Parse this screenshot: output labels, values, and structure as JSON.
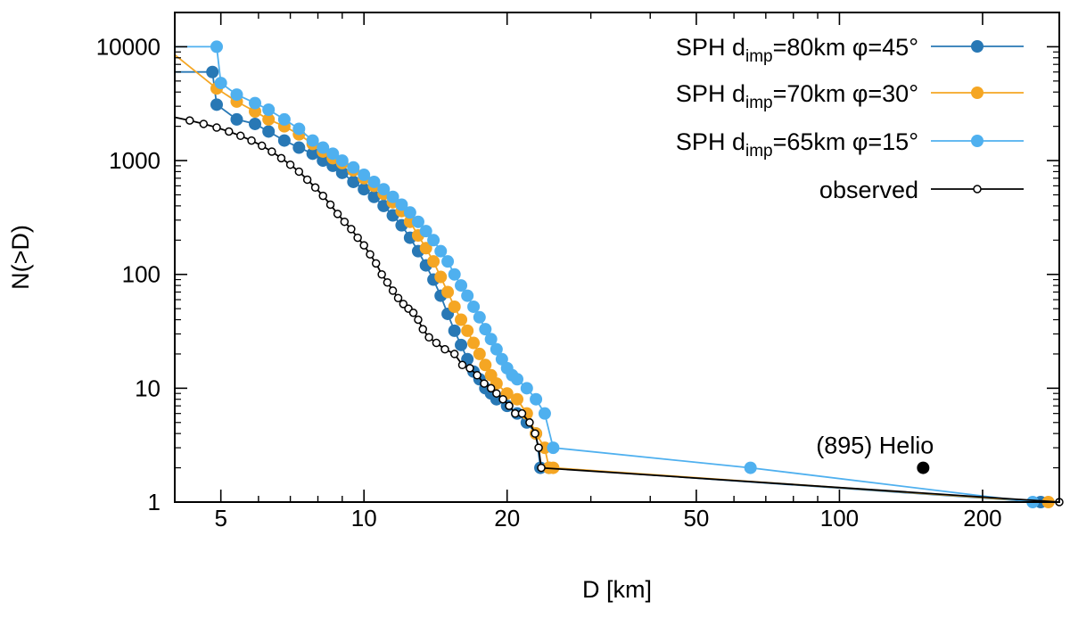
{
  "chart_data": {
    "type": "line",
    "xscale": "log",
    "yscale": "log",
    "xlabel": "D [km]",
    "ylabel": "N(>D)",
    "xlim": [
      4,
      290
    ],
    "ylim": [
      1,
      20000
    ],
    "xticks": [
      {
        "value": 5,
        "label": "5"
      },
      {
        "value": 10,
        "label": "10"
      },
      {
        "value": 20,
        "label": "20"
      },
      {
        "value": 50,
        "label": "50"
      },
      {
        "value": 100,
        "label": "100"
      },
      {
        "value": 200,
        "label": "200"
      }
    ],
    "yticks": [
      {
        "value": 1,
        "label": "1"
      },
      {
        "value": 10,
        "label": "10"
      },
      {
        "value": 100,
        "label": "100"
      },
      {
        "value": 1000,
        "label": "1000"
      },
      {
        "value": 10000,
        "label": "10000"
      }
    ],
    "legend_position": "top-right",
    "series": [
      {
        "name": "SPH d_imp=80km φ=45°",
        "legend_prefix": "SPH d",
        "legend_sub": "imp",
        "legend_suffix": "=80km φ=45°",
        "color": "#2878b5",
        "marker": "filled",
        "points": [
          [
            4,
            6000
          ],
          [
            4.8,
            6000
          ],
          [
            4.9,
            3100
          ],
          [
            5.4,
            2300
          ],
          [
            5.9,
            2100
          ],
          [
            6.3,
            1800
          ],
          [
            6.8,
            1500
          ],
          [
            7.3,
            1300
          ],
          [
            7.8,
            1150
          ],
          [
            8.2,
            1000
          ],
          [
            8.6,
            900
          ],
          [
            9.0,
            780
          ],
          [
            9.5,
            650
          ],
          [
            10.0,
            560
          ],
          [
            10.5,
            480
          ],
          [
            11.0,
            400
          ],
          [
            11.5,
            330
          ],
          [
            12.0,
            270
          ],
          [
            12.5,
            210
          ],
          [
            13.0,
            160
          ],
          [
            13.5,
            120
          ],
          [
            14.0,
            90
          ],
          [
            14.5,
            65
          ],
          [
            15.0,
            45
          ],
          [
            15.5,
            32
          ],
          [
            16.0,
            24
          ],
          [
            16.5,
            18
          ],
          [
            17.0,
            14
          ],
          [
            17.5,
            12
          ],
          [
            18.0,
            10
          ],
          [
            18.5,
            9
          ],
          [
            19.0,
            8
          ],
          [
            20.0,
            7
          ],
          [
            21.0,
            6
          ],
          [
            22.0,
            5
          ],
          [
            23.0,
            4
          ],
          [
            23.5,
            2
          ],
          [
            24.5,
            2
          ],
          [
            265,
            1
          ]
        ]
      },
      {
        "name": "SPH d_imp=70km φ=30°",
        "legend_prefix": "SPH d",
        "legend_sub": "imp",
        "legend_suffix": "=70km φ=30°",
        "color": "#f5a623",
        "marker": "filled",
        "points": [
          [
            4,
            8500
          ],
          [
            4.9,
            4300
          ],
          [
            5.4,
            3300
          ],
          [
            5.9,
            2700
          ],
          [
            6.3,
            2300
          ],
          [
            6.8,
            2000
          ],
          [
            7.3,
            1700
          ],
          [
            7.8,
            1400
          ],
          [
            8.2,
            1200
          ],
          [
            8.6,
            1050
          ],
          [
            9.0,
            950
          ],
          [
            9.5,
            820
          ],
          [
            10.0,
            700
          ],
          [
            10.5,
            600
          ],
          [
            11.0,
            510
          ],
          [
            11.5,
            430
          ],
          [
            12.0,
            360
          ],
          [
            12.5,
            290
          ],
          [
            13.0,
            220
          ],
          [
            13.5,
            170
          ],
          [
            14.0,
            130
          ],
          [
            14.5,
            95
          ],
          [
            15.0,
            70
          ],
          [
            15.5,
            52
          ],
          [
            16.0,
            40
          ],
          [
            16.5,
            32
          ],
          [
            17.0,
            25
          ],
          [
            17.5,
            20
          ],
          [
            18.0,
            16
          ],
          [
            18.5,
            13
          ],
          [
            19.0,
            11
          ],
          [
            20.0,
            9
          ],
          [
            21.0,
            8
          ],
          [
            22.0,
            6
          ],
          [
            23.0,
            4
          ],
          [
            24.0,
            3
          ],
          [
            24.5,
            2
          ],
          [
            25.0,
            2
          ],
          [
            275,
            1
          ]
        ]
      },
      {
        "name": "SPH d_imp=65km φ=15°",
        "legend_prefix": "SPH d",
        "legend_sub": "imp",
        "legend_suffix": "=65km φ=15°",
        "color": "#4fb0ef",
        "marker": "filled",
        "points": [
          [
            4,
            10000
          ],
          [
            4.9,
            10000
          ],
          [
            5.0,
            4800
          ],
          [
            5.4,
            3800
          ],
          [
            5.9,
            3200
          ],
          [
            6.3,
            2800
          ],
          [
            6.8,
            2300
          ],
          [
            7.3,
            1900
          ],
          [
            7.8,
            1500
          ],
          [
            8.2,
            1300
          ],
          [
            8.6,
            1150
          ],
          [
            9.0,
            1000
          ],
          [
            9.5,
            870
          ],
          [
            10.0,
            750
          ],
          [
            10.5,
            650
          ],
          [
            11.0,
            560
          ],
          [
            11.5,
            480
          ],
          [
            12.0,
            410
          ],
          [
            12.5,
            350
          ],
          [
            13.0,
            290
          ],
          [
            13.5,
            240
          ],
          [
            14.0,
            200
          ],
          [
            14.5,
            160
          ],
          [
            15.0,
            130
          ],
          [
            15.5,
            100
          ],
          [
            16.0,
            80
          ],
          [
            16.5,
            65
          ],
          [
            17.0,
            52
          ],
          [
            17.5,
            42
          ],
          [
            18.0,
            33
          ],
          [
            18.5,
            27
          ],
          [
            19.0,
            22
          ],
          [
            19.5,
            18
          ],
          [
            20.0,
            15
          ],
          [
            20.5,
            13
          ],
          [
            21.0,
            12
          ],
          [
            22.0,
            10
          ],
          [
            23.0,
            8
          ],
          [
            24.0,
            6
          ],
          [
            25.0,
            3
          ],
          [
            65,
            2
          ],
          [
            255,
            1
          ]
        ]
      },
      {
        "name": "observed",
        "legend_prefix": "observed",
        "legend_sub": "",
        "legend_suffix": "",
        "color": "#000000",
        "marker": "open",
        "points": [
          [
            4,
            2400
          ],
          [
            4.3,
            2250
          ],
          [
            4.6,
            2100
          ],
          [
            4.9,
            1950
          ],
          [
            5.2,
            1800
          ],
          [
            5.5,
            1650
          ],
          [
            5.8,
            1500
          ],
          [
            6.1,
            1350
          ],
          [
            6.4,
            1200
          ],
          [
            6.7,
            1050
          ],
          [
            7.0,
            920
          ],
          [
            7.3,
            800
          ],
          [
            7.6,
            680
          ],
          [
            7.9,
            580
          ],
          [
            8.2,
            490
          ],
          [
            8.5,
            410
          ],
          [
            8.8,
            340
          ],
          [
            9.1,
            290
          ],
          [
            9.4,
            250
          ],
          [
            9.7,
            210
          ],
          [
            10.0,
            180
          ],
          [
            10.3,
            150
          ],
          [
            10.6,
            125
          ],
          [
            10.9,
            100
          ],
          [
            11.2,
            85
          ],
          [
            11.5,
            72
          ],
          [
            11.8,
            62
          ],
          [
            12.1,
            55
          ],
          [
            12.4,
            50
          ],
          [
            12.7,
            46
          ],
          [
            13.0,
            40
          ],
          [
            13.3,
            33
          ],
          [
            13.7,
            28
          ],
          [
            14.2,
            25
          ],
          [
            14.8,
            22
          ],
          [
            15.5,
            20
          ],
          [
            16.1,
            16
          ],
          [
            16.7,
            15
          ],
          [
            17.3,
            13
          ],
          [
            17.9,
            11
          ],
          [
            18.5,
            10
          ],
          [
            19.0,
            9
          ],
          [
            19.6,
            8
          ],
          [
            20.2,
            7
          ],
          [
            20.8,
            6
          ],
          [
            21.5,
            6
          ],
          [
            22.3,
            5
          ],
          [
            22.9,
            4
          ],
          [
            23.3,
            3
          ],
          [
            23.6,
            2
          ],
          [
            290,
            1
          ]
        ]
      }
    ],
    "annotations": [
      {
        "label": "(895) Helio",
        "x": 150,
        "y": 2
      }
    ]
  }
}
